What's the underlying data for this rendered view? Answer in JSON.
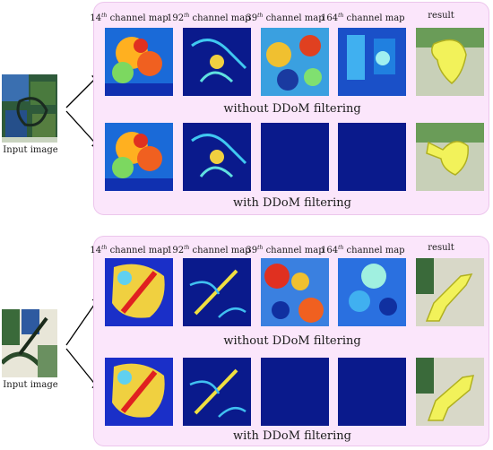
{
  "figure": {
    "top": {
      "input_label": "Input image",
      "headers": [
        {
          "num": "14",
          "sup": "th",
          "text": " channel map"
        },
        {
          "num": "192",
          "sup": "th",
          "text": " channel map"
        },
        {
          "num": "39",
          "sup": "th",
          "text": " channel map"
        },
        {
          "num": "164",
          "sup": "th",
          "text": " channel map"
        },
        {
          "num": "",
          "sup": "",
          "text": "result"
        }
      ],
      "caption_without": "without DDoM filtering",
      "caption_with": "with DDoM filtering"
    },
    "bottom": {
      "input_label": "Input image",
      "headers": [
        {
          "num": "14",
          "sup": "th",
          "text": " channel map"
        },
        {
          "num": "192",
          "sup": "th",
          "text": " channel map"
        },
        {
          "num": "39",
          "sup": "th",
          "text": " channel map"
        },
        {
          "num": "164",
          "sup": "th",
          "text": " channel map"
        },
        {
          "num": "",
          "sup": "",
          "text": "result"
        }
      ],
      "caption_without": "without DDoM filtering",
      "caption_with": "with DDoM filtering"
    }
  },
  "colors": {
    "panel_bg": "#fbe6fb",
    "heatmap_bg": "#1a2fc8",
    "empty_map": "#0a1a8c",
    "result_overlay": "#f2f25a"
  }
}
